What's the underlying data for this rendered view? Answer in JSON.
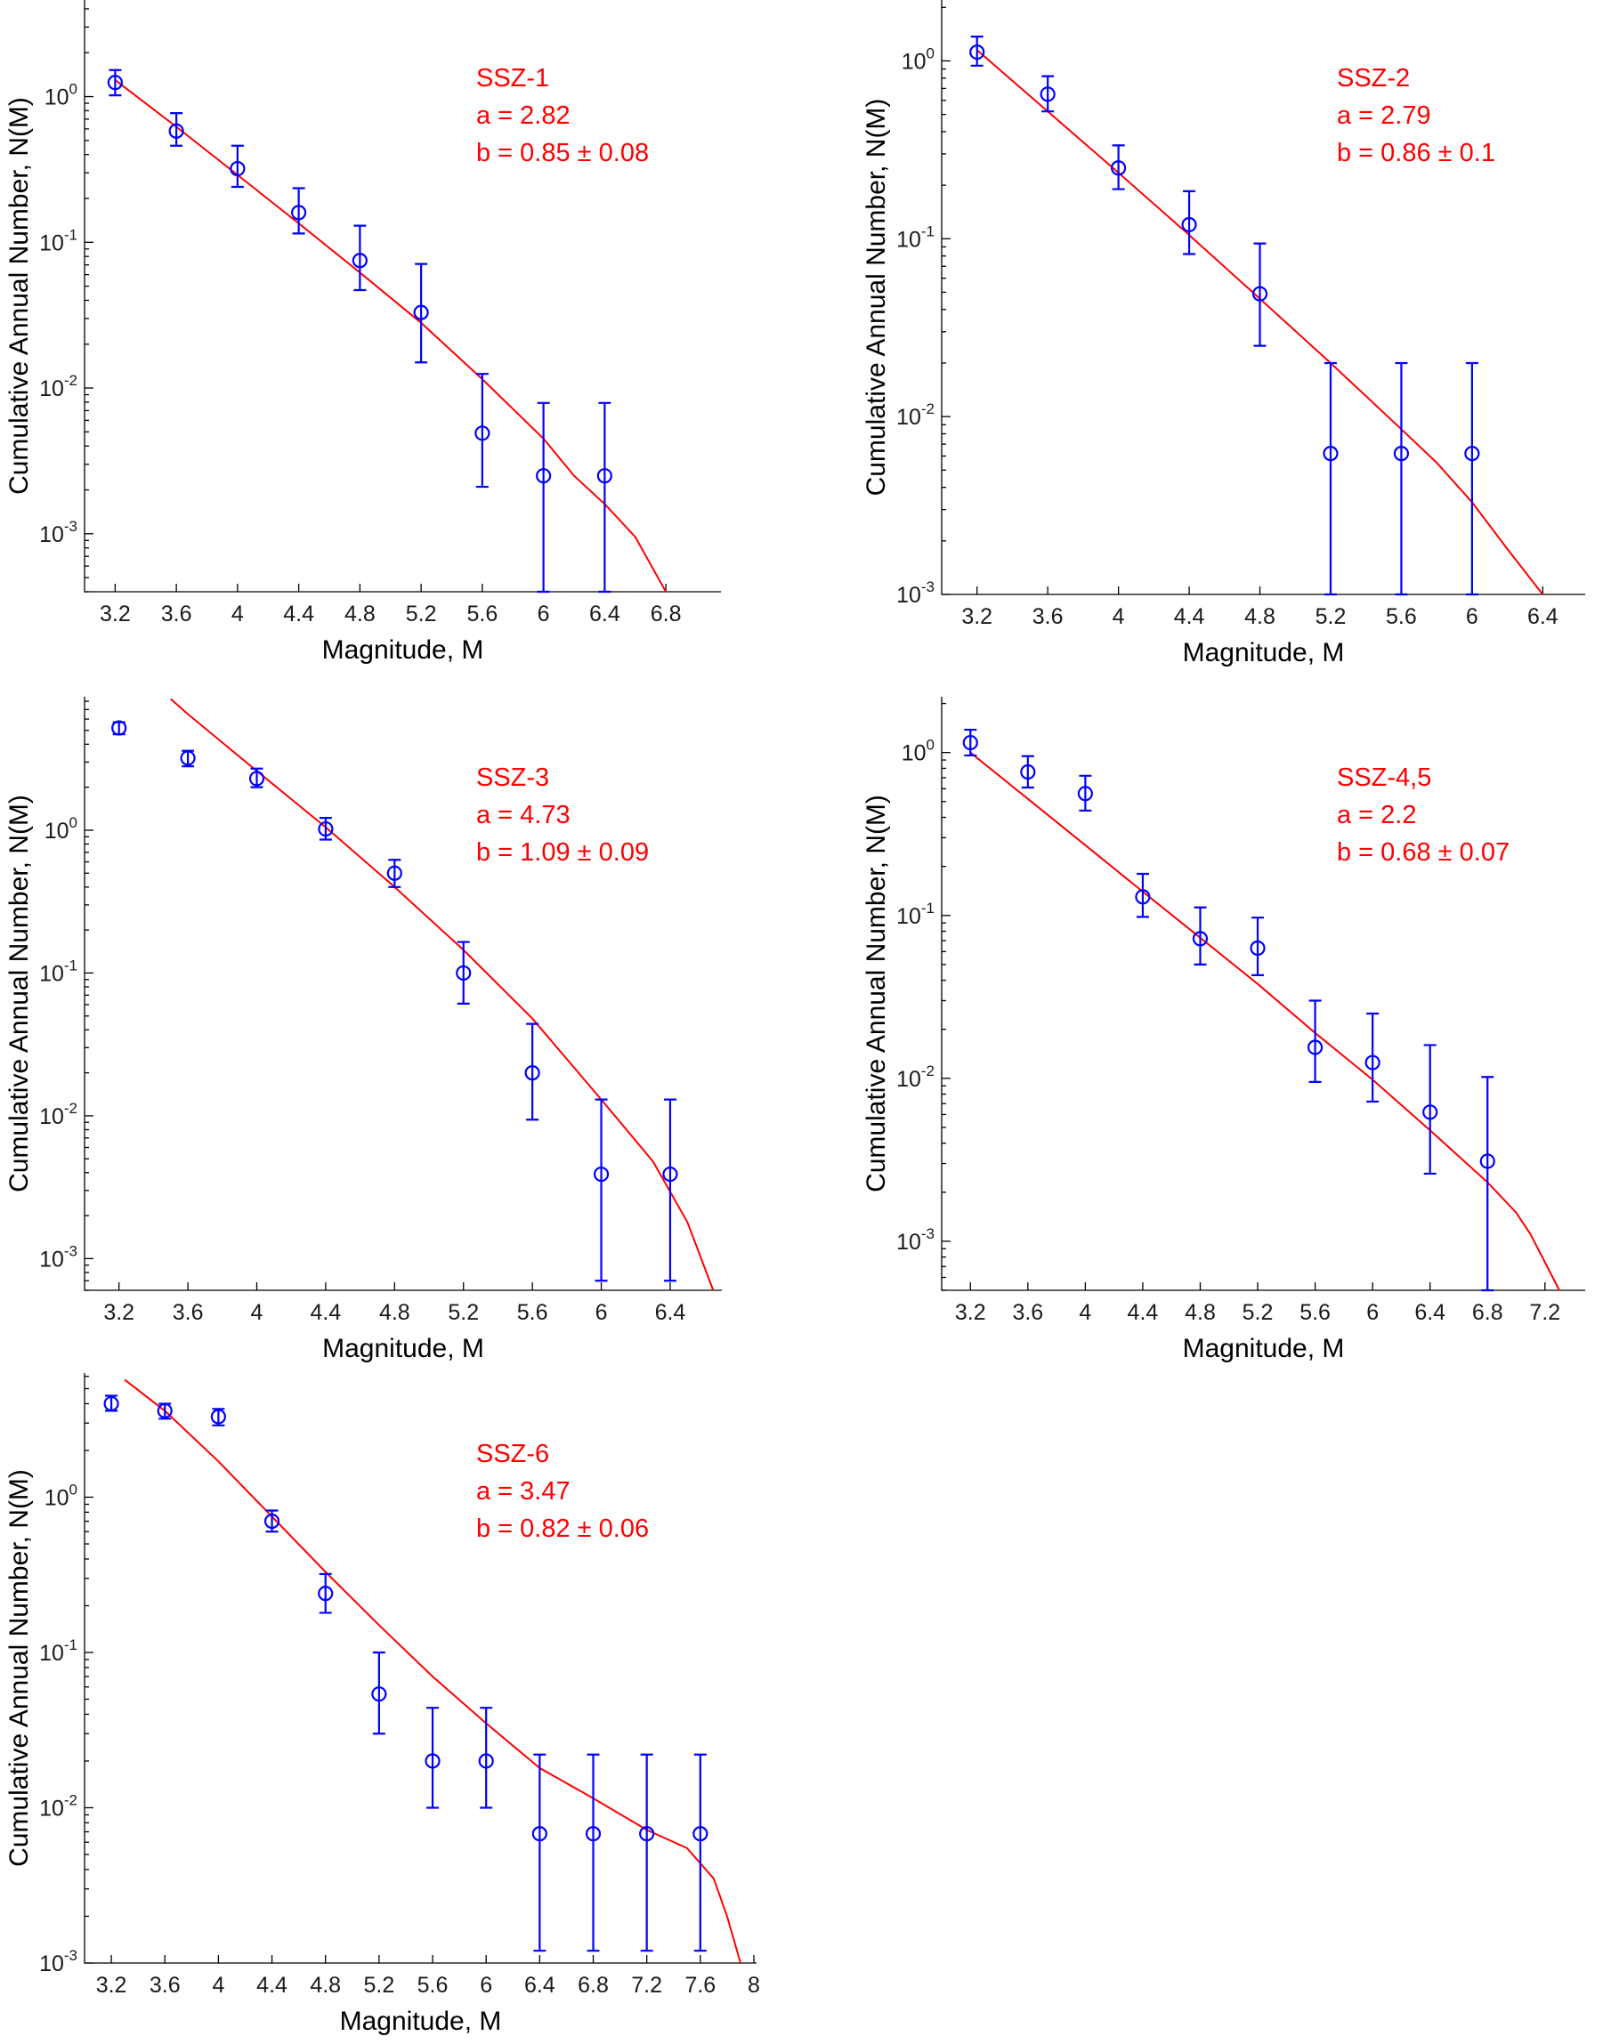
{
  "chart_data": [
    {
      "type": "scatter",
      "title": "",
      "xlabel": "Magnitude, M",
      "ylabel": "Cumulative Annual Number, N(M)",
      "yscale": "log",
      "xlim": [
        3.0,
        7.16
      ],
      "ylim": [
        0.0004,
        4.6
      ],
      "xticks": [
        3.2,
        3.6,
        4,
        4.4,
        4.8,
        5.2,
        5.6,
        6,
        6.4,
        6.8
      ],
      "xtick_labels": [
        "3.2",
        "3.6",
        "4",
        "4.4",
        "4.8",
        "5.2",
        "5.6",
        "6",
        "6.4",
        "6.8"
      ],
      "yticks": [
        0.001,
        0.01,
        0.1,
        1
      ],
      "ytick_labels": [
        [
          "10",
          "-3"
        ],
        [
          "10",
          "-2"
        ],
        [
          "10",
          "-1"
        ],
        [
          "10",
          "0"
        ]
      ],
      "annotation": [
        "SSZ-1",
        "a = 2.82",
        "b = 0.85 ± 0.08"
      ],
      "points": [
        {
          "x": 3.2,
          "y": 1.25,
          "ylo": 1.02,
          "yhi": 1.52
        },
        {
          "x": 3.6,
          "y": 0.58,
          "ylo": 0.46,
          "yhi": 0.77
        },
        {
          "x": 4.0,
          "y": 0.32,
          "ylo": 0.24,
          "yhi": 0.46
        },
        {
          "x": 4.4,
          "y": 0.16,
          "ylo": 0.115,
          "yhi": 0.235
        },
        {
          "x": 4.8,
          "y": 0.075,
          "ylo": 0.047,
          "yhi": 0.13
        },
        {
          "x": 5.2,
          "y": 0.033,
          "ylo": 0.015,
          "yhi": 0.071
        },
        {
          "x": 5.6,
          "y": 0.0049,
          "ylo": 0.0021,
          "yhi": 0.0125
        },
        {
          "x": 6.0,
          "y": 0.0025,
          "ylo": 0.0004,
          "yhi": 0.0079
        },
        {
          "x": 6.4,
          "y": 0.0025,
          "ylo": 0.0004,
          "yhi": 0.0079
        }
      ],
      "fit": {
        "x": [
          3.2,
          3.6,
          4.0,
          4.4,
          4.8,
          5.2,
          5.6,
          6.0,
          6.2,
          6.4,
          6.6,
          6.8
        ],
        "y": [
          1.3,
          0.62,
          0.29,
          0.135,
          0.062,
          0.028,
          0.0115,
          0.0045,
          0.0025,
          0.0016,
          0.00095,
          0.0004
        ]
      }
    },
    {
      "type": "scatter",
      "title": "",
      "xlabel": "Magnitude, M",
      "ylabel": "Cumulative Annual Number, N(M)",
      "yscale": "log",
      "xlim": [
        3.0,
        6.64
      ],
      "ylim": [
        0.001,
        2.2
      ],
      "xticks": [
        3.2,
        3.6,
        4,
        4.4,
        4.8,
        5.2,
        5.6,
        6,
        6.4
      ],
      "xtick_labels": [
        "3.2",
        "3.6",
        "4",
        "4.4",
        "4.8",
        "5.2",
        "5.6",
        "6",
        "6.4"
      ],
      "yticks": [
        0.001,
        0.01,
        0.1,
        1
      ],
      "ytick_labels": [
        [
          "10",
          "-3"
        ],
        [
          "10",
          "-2"
        ],
        [
          "10",
          "-1"
        ],
        [
          "10",
          "0"
        ]
      ],
      "annotation": [
        "SSZ-2",
        "a = 2.79",
        "b = 0.86 ± 0.1"
      ],
      "points": [
        {
          "x": 3.2,
          "y": 1.12,
          "ylo": 0.94,
          "yhi": 1.37
        },
        {
          "x": 3.6,
          "y": 0.65,
          "ylo": 0.52,
          "yhi": 0.82
        },
        {
          "x": 4.0,
          "y": 0.25,
          "ylo": 0.19,
          "yhi": 0.335
        },
        {
          "x": 4.4,
          "y": 0.12,
          "ylo": 0.082,
          "yhi": 0.185
        },
        {
          "x": 4.8,
          "y": 0.049,
          "ylo": 0.025,
          "yhi": 0.094
        },
        {
          "x": 5.2,
          "y": 0.0062,
          "ylo": 0.001,
          "yhi": 0.02
        },
        {
          "x": 5.6,
          "y": 0.0062,
          "ylo": 0.001,
          "yhi": 0.02
        },
        {
          "x": 6.0,
          "y": 0.0062,
          "ylo": 0.001,
          "yhi": 0.02
        }
      ],
      "fit": {
        "x": [
          3.2,
          3.6,
          4.0,
          4.4,
          4.8,
          5.2,
          5.6,
          5.8,
          6.0,
          6.2,
          6.4
        ],
        "y": [
          1.15,
          0.52,
          0.235,
          0.105,
          0.046,
          0.02,
          0.0085,
          0.0055,
          0.0033,
          0.0018,
          0.00085
        ]
      }
    },
    {
      "type": "scatter",
      "title": "",
      "xlabel": "Magnitude, M",
      "ylabel": "Cumulative Annual Number, N(M)",
      "yscale": "log",
      "xlim": [
        3.0,
        6.7
      ],
      "ylim": [
        0.0006,
        8.6
      ],
      "xticks": [
        3.2,
        3.6,
        4,
        4.4,
        4.8,
        5.2,
        5.6,
        6,
        6.4
      ],
      "xtick_labels": [
        "3.2",
        "3.6",
        "4",
        "4.4",
        "4.8",
        "5.2",
        "5.6",
        "6",
        "6.4"
      ],
      "yticks": [
        0.001,
        0.01,
        0.1,
        1
      ],
      "ytick_labels": [
        [
          "10",
          "-3"
        ],
        [
          "10",
          "-2"
        ],
        [
          "10",
          "-1"
        ],
        [
          "10",
          "0"
        ]
      ],
      "annotation": [
        "SSZ-3",
        "a = 4.73",
        "b = 1.09 ± 0.09"
      ],
      "points": [
        {
          "x": 3.2,
          "y": 5.2,
          "ylo": 4.7,
          "yhi": 5.7
        },
        {
          "x": 3.6,
          "y": 3.2,
          "ylo": 2.8,
          "yhi": 3.6
        },
        {
          "x": 4.0,
          "y": 2.3,
          "ylo": 2.0,
          "yhi": 2.7
        },
        {
          "x": 4.4,
          "y": 1.02,
          "ylo": 0.86,
          "yhi": 1.22
        },
        {
          "x": 4.8,
          "y": 0.5,
          "ylo": 0.4,
          "yhi": 0.62
        },
        {
          "x": 5.2,
          "y": 0.1,
          "ylo": 0.061,
          "yhi": 0.165
        },
        {
          "x": 5.6,
          "y": 0.02,
          "ylo": 0.0094,
          "yhi": 0.044
        },
        {
          "x": 6.0,
          "y": 0.0039,
          "ylo": 0.0007,
          "yhi": 0.013
        },
        {
          "x": 6.4,
          "y": 0.0039,
          "ylo": 0.0007,
          "yhi": 0.013
        }
      ],
      "fit": {
        "x": [
          3.5,
          3.6,
          4.0,
          4.4,
          4.8,
          5.2,
          5.6,
          6.0,
          6.3,
          6.5,
          6.65
        ],
        "y": [
          8.3,
          6.5,
          2.6,
          1.05,
          0.4,
          0.145,
          0.048,
          0.013,
          0.0048,
          0.0018,
          0.0006
        ]
      }
    },
    {
      "type": "scatter",
      "title": "",
      "xlabel": "Magnitude, M",
      "ylabel": "Cumulative Annual Number, N(M)",
      "yscale": "log",
      "xlim": [
        3.0,
        7.48
      ],
      "ylim": [
        0.0005,
        2.2
      ],
      "xticks": [
        3.2,
        3.6,
        4,
        4.4,
        4.8,
        5.2,
        5.6,
        6,
        6.4,
        6.8,
        7.2
      ],
      "xtick_labels": [
        "3.2",
        "3.6",
        "4",
        "4.4",
        "4.8",
        "5.2",
        "5.6",
        "6",
        "6.4",
        "6.8",
        "7.2"
      ],
      "yticks": [
        0.001,
        0.01,
        0.1,
        1
      ],
      "ytick_labels": [
        [
          "10",
          "-3"
        ],
        [
          "10",
          "-2"
        ],
        [
          "10",
          "-1"
        ],
        [
          "10",
          "0"
        ]
      ],
      "annotation": [
        "SSZ-4,5",
        "a = 2.2",
        "b = 0.68 ± 0.07"
      ],
      "points": [
        {
          "x": 3.2,
          "y": 1.15,
          "ylo": 0.96,
          "yhi": 1.38
        },
        {
          "x": 3.6,
          "y": 0.76,
          "ylo": 0.61,
          "yhi": 0.95
        },
        {
          "x": 4.0,
          "y": 0.56,
          "ylo": 0.44,
          "yhi": 0.72
        },
        {
          "x": 4.4,
          "y": 0.13,
          "ylo": 0.098,
          "yhi": 0.18
        },
        {
          "x": 4.8,
          "y": 0.072,
          "ylo": 0.05,
          "yhi": 0.112
        },
        {
          "x": 5.2,
          "y": 0.063,
          "ylo": 0.043,
          "yhi": 0.097
        },
        {
          "x": 5.6,
          "y": 0.0155,
          "ylo": 0.0095,
          "yhi": 0.03
        },
        {
          "x": 6.0,
          "y": 0.0125,
          "ylo": 0.0072,
          "yhi": 0.025
        },
        {
          "x": 6.4,
          "y": 0.0062,
          "ylo": 0.0026,
          "yhi": 0.016
        },
        {
          "x": 6.8,
          "y": 0.0031,
          "ylo": 0.0005,
          "yhi": 0.0102
        }
      ],
      "fit": {
        "x": [
          3.2,
          3.6,
          4.0,
          4.4,
          4.8,
          5.2,
          5.6,
          6.0,
          6.4,
          6.8,
          7.0,
          7.1,
          7.3
        ],
        "y": [
          1.0,
          0.52,
          0.27,
          0.14,
          0.073,
          0.038,
          0.019,
          0.0098,
          0.0048,
          0.0023,
          0.0015,
          0.0011,
          0.0005
        ]
      }
    },
    {
      "type": "scatter",
      "title": "",
      "xlabel": "Magnitude, M",
      "ylabel": "Cumulative Annual Number, N(M)",
      "yscale": "log",
      "xlim": [
        3.0,
        8.02
      ],
      "ylim": [
        0.001,
        6.3
      ],
      "xticks": [
        3.2,
        3.6,
        4,
        4.4,
        4.8,
        5.2,
        5.6,
        6,
        6.4,
        6.8,
        7.2,
        7.6,
        8
      ],
      "xtick_labels": [
        "3.2",
        "3.6",
        "4",
        "4.4",
        "4.8",
        "5.2",
        "5.6",
        "6",
        "6.4",
        "6.8",
        "7.2",
        "7.6",
        "8"
      ],
      "yticks": [
        0.001,
        0.01,
        0.1,
        1
      ],
      "ytick_labels": [
        [
          "10",
          "-3"
        ],
        [
          "10",
          "-2"
        ],
        [
          "10",
          "-1"
        ],
        [
          "10",
          "0"
        ]
      ],
      "annotation": [
        "SSZ-6",
        "a = 3.47",
        "b = 0.82 ± 0.06"
      ],
      "points": [
        {
          "x": 3.2,
          "y": 4.0,
          "ylo": 3.6,
          "yhi": 4.5
        },
        {
          "x": 3.6,
          "y": 3.6,
          "ylo": 3.2,
          "yhi": 4.0
        },
        {
          "x": 4.0,
          "y": 3.3,
          "ylo": 2.9,
          "yhi": 3.7
        },
        {
          "x": 4.4,
          "y": 0.7,
          "ylo": 0.6,
          "yhi": 0.82
        },
        {
          "x": 4.8,
          "y": 0.24,
          "ylo": 0.18,
          "yhi": 0.32
        },
        {
          "x": 5.2,
          "y": 0.054,
          "ylo": 0.03,
          "yhi": 0.1
        },
        {
          "x": 5.6,
          "y": 0.02,
          "ylo": 0.01,
          "yhi": 0.044
        },
        {
          "x": 6.0,
          "y": 0.02,
          "ylo": 0.01,
          "yhi": 0.044
        },
        {
          "x": 6.4,
          "y": 0.0068,
          "ylo": 0.0012,
          "yhi": 0.022
        },
        {
          "x": 6.8,
          "y": 0.0068,
          "ylo": 0.0012,
          "yhi": 0.022
        },
        {
          "x": 7.2,
          "y": 0.0068,
          "ylo": 0.0012,
          "yhi": 0.022
        },
        {
          "x": 7.6,
          "y": 0.0068,
          "ylo": 0.0012,
          "yhi": 0.022
        }
      ],
      "fit": {
        "x": [
          3.3,
          3.6,
          4.0,
          4.4,
          4.8,
          5.2,
          5.6,
          6.0,
          6.4,
          6.8,
          7.2,
          7.5,
          7.7,
          7.8,
          7.9
        ],
        "y": [
          5.7,
          3.6,
          1.7,
          0.75,
          0.33,
          0.15,
          0.07,
          0.035,
          0.018,
          0.0115,
          0.0072,
          0.0055,
          0.0035,
          0.002,
          0.001
        ]
      }
    }
  ]
}
